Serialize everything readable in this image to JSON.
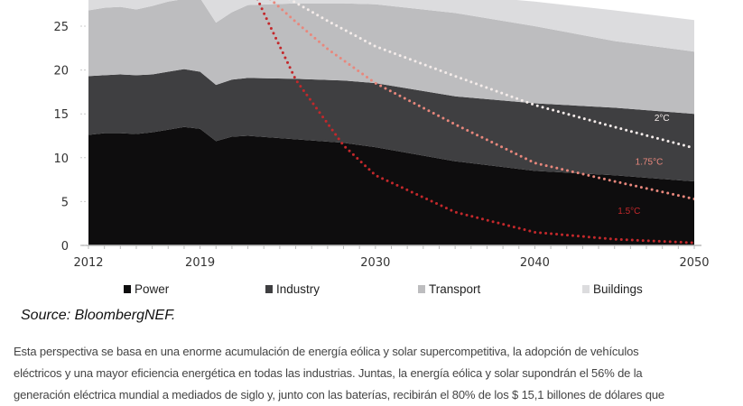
{
  "chart_data": {
    "type": "area",
    "stacked": true,
    "x": [
      2012,
      2013,
      2014,
      2015,
      2016,
      2017,
      2018,
      2019,
      2020,
      2021,
      2022,
      2025,
      2028,
      2030,
      2035,
      2040,
      2045,
      2050
    ],
    "series": [
      {
        "name": "Power",
        "color": "#0e0d0e",
        "values": [
          12.6,
          12.8,
          12.8,
          12.7,
          12.9,
          13.2,
          13.5,
          13.3,
          11.9,
          12.4,
          12.5,
          12.1,
          11.7,
          11.2,
          9.6,
          8.5,
          8.0,
          7.3
        ]
      },
      {
        "name": "Industry",
        "color": "#3f3f41",
        "values": [
          6.7,
          6.6,
          6.7,
          6.7,
          6.6,
          6.6,
          6.6,
          6.5,
          6.4,
          6.5,
          6.6,
          6.9,
          7.1,
          7.3,
          7.4,
          7.7,
          7.7,
          7.7
        ]
      },
      {
        "name": "Transport",
        "color": "#bdbdbf",
        "values": [
          7.5,
          7.7,
          7.7,
          7.5,
          7.8,
          8.0,
          8.0,
          8.4,
          7.1,
          7.7,
          8.3,
          8.6,
          8.8,
          9.0,
          9.5,
          8.8,
          7.6,
          7.1
        ]
      },
      {
        "name": "Buildings",
        "color": "#dcdcde",
        "values": [
          2.7,
          2.6,
          2.6,
          2.7,
          2.6,
          2.4,
          2.4,
          2.4,
          2.6,
          2.4,
          2.1,
          2.0,
          1.8,
          1.7,
          2.1,
          2.8,
          3.5,
          3.6
        ]
      }
    ],
    "pathways": [
      {
        "name": "1.5°C",
        "color": "#c3282b",
        "points": [
          [
            2022.6,
            28.1
          ],
          [
            2023,
            26.5
          ],
          [
            2025,
            18.9
          ],
          [
            2028,
            11.4
          ],
          [
            2030,
            8.0
          ],
          [
            2035,
            3.8
          ],
          [
            2040,
            1.5
          ],
          [
            2045,
            0.7
          ],
          [
            2050,
            0.3
          ]
        ]
      },
      {
        "name": "1.75°C",
        "color": "#e8877c",
        "points": [
          [
            2023.4,
            28.1
          ],
          [
            2025,
            25.5
          ],
          [
            2027,
            22.4
          ],
          [
            2030,
            18.5
          ],
          [
            2035,
            13.8
          ],
          [
            2040,
            9.4
          ],
          [
            2045,
            7.3
          ],
          [
            2050,
            5.3
          ]
        ]
      },
      {
        "name": "2°C",
        "color": "#f4ecea",
        "points": [
          [
            2024.6,
            28.1
          ],
          [
            2027,
            25.6
          ],
          [
            2030,
            22.7
          ],
          [
            2035,
            19.3
          ],
          [
            2040,
            16.0
          ],
          [
            2045,
            13.5
          ],
          [
            2050,
            11.1
          ]
        ]
      }
    ],
    "x_ticks": [
      "2012",
      "2019",
      "2030",
      "2040",
      "2050"
    ],
    "y_ticks": [
      "0",
      "5",
      "10",
      "15",
      "20",
      "25"
    ],
    "xlim": [
      2012,
      2050
    ],
    "ylim": [
      0,
      28.1
    ],
    "grid": false,
    "legend": [
      "Power",
      "Industry",
      "Transport",
      "Buildings"
    ],
    "legend_placement": "bottom"
  },
  "source": "Source: BloombergNEF.",
  "paragraph_lines": [
    "Esta perspectiva se basa en una enorme acumulación de energía eólica y solar supercompetitiva, la adopción de vehículos",
    "eléctricos y una mayor eficiencia energética en todas las industrias. Juntas, la energía eólica y solar supondrán el 56% de la",
    "generación eléctrica mundial a mediados de siglo y, junto con las baterías, recibirán el 80% de los $ 15,1 billones de dólares que"
  ]
}
